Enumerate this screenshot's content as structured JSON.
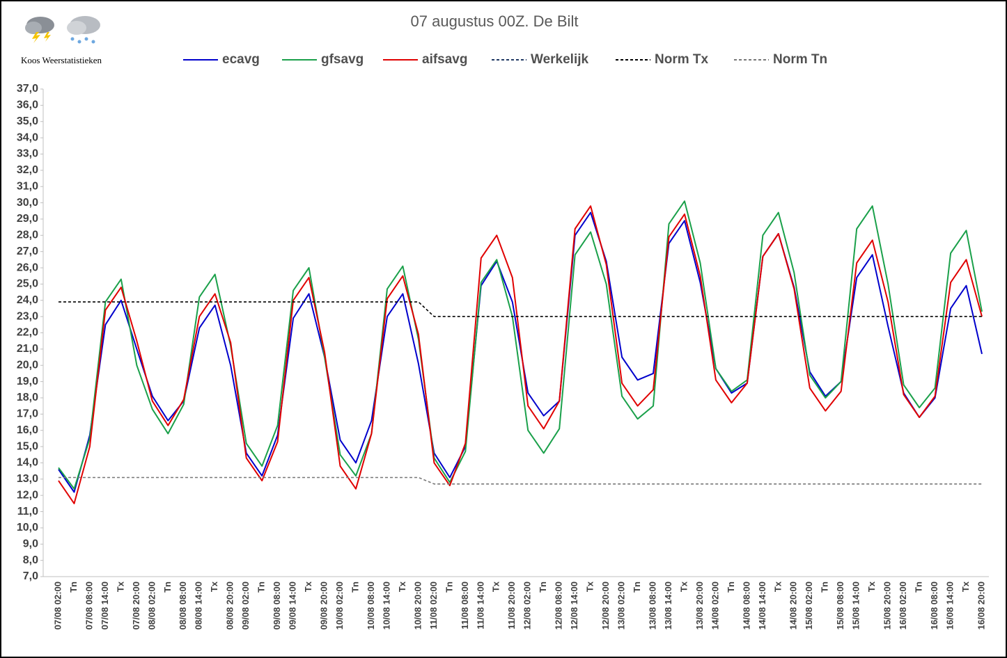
{
  "logo_text": "Koos Weerstatistieken",
  "chart_data": {
    "type": "line",
    "title": "07 augustus 00Z. De Bilt",
    "categories": [
      "07/08 02:00",
      "Tn",
      "07/08 08:00",
      "07/08 14:00",
      "Tx",
      "07/08 20:00",
      "08/08 02:00",
      "Tn",
      "08/08 08:00",
      "08/08 14:00",
      "Tx",
      "08/08 20:00",
      "09/08 02:00",
      "Tn",
      "09/08 08:00",
      "09/08 14:00",
      "Tx",
      "09/08 20:00",
      "10/08 02:00",
      "Tn",
      "10/08 08:00",
      "10/08 14:00",
      "Tx",
      "10/08 20:00",
      "11/08 02:00",
      "Tn",
      "11/08 08:00",
      "11/08 14:00",
      "Tx",
      "11/08 20:00",
      "12/08 02:00",
      "Tn",
      "12/08 08:00",
      "12/08 14:00",
      "Tx",
      "12/08 20:00",
      "13/08 02:00",
      "Tn",
      "13/08 08:00",
      "13/08 14:00",
      "Tx",
      "13/08 20:00",
      "14/08 02:00",
      "Tn",
      "14/08 08:00",
      "14/08 14:00",
      "Tx",
      "14/08 20:00",
      "15/08 02:00",
      "Tn",
      "15/08 08:00",
      "15/08 14:00",
      "Tx",
      "15/08 20:00",
      "16/08 02:00",
      "Tn",
      "16/08 08:00",
      "16/08 14:00",
      "Tx",
      "16/08 20:00"
    ],
    "series": [
      {
        "name": "ecavg",
        "color": "#0000cc",
        "dashed": false,
        "values": [
          13.6,
          12.2,
          15.7,
          22.5,
          24.0,
          21.0,
          18.1,
          16.6,
          17.8,
          22.3,
          23.7,
          20.0,
          14.6,
          13.2,
          15.7,
          22.9,
          24.4,
          20.5,
          15.4,
          14.0,
          16.6,
          23.0,
          24.4,
          20.1,
          14.6,
          13.1,
          15.0,
          24.9,
          26.4,
          23.9,
          18.3,
          16.9,
          17.8,
          28.0,
          29.4,
          26.4,
          20.5,
          19.1,
          19.5,
          27.5,
          28.9,
          25.1,
          19.8,
          18.3,
          18.9,
          26.7,
          28.1,
          24.8,
          19.6,
          18.1,
          19.0,
          25.4,
          26.8,
          22.4,
          18.3,
          16.8,
          18.0,
          23.5,
          24.9,
          20.7
        ]
      },
      {
        "name": "gfsavg",
        "color": "#1aa04a",
        "dashed": false,
        "values": [
          13.7,
          12.4,
          15.5,
          23.9,
          25.3,
          20.0,
          17.3,
          15.8,
          17.6,
          24.2,
          25.6,
          21.2,
          15.2,
          13.8,
          16.3,
          24.6,
          26.0,
          20.5,
          14.5,
          13.2,
          15.8,
          24.7,
          26.1,
          21.6,
          14.3,
          12.8,
          14.7,
          25.1,
          26.5,
          23.0,
          16.0,
          14.6,
          16.1,
          26.8,
          28.2,
          25.0,
          18.1,
          16.7,
          17.5,
          28.7,
          30.1,
          26.3,
          19.8,
          18.4,
          19.1,
          28.0,
          29.4,
          25.7,
          19.4,
          18.0,
          19.0,
          28.4,
          29.8,
          25.0,
          18.8,
          17.4,
          18.6,
          26.9,
          28.3,
          23.3
        ]
      },
      {
        "name": "aifsavg",
        "color": "#e00000",
        "dashed": false,
        "values": [
          12.9,
          11.5,
          15.0,
          23.4,
          24.8,
          21.5,
          17.8,
          16.3,
          17.9,
          23.0,
          24.4,
          21.4,
          14.3,
          12.9,
          15.3,
          24.0,
          25.4,
          20.8,
          13.8,
          12.4,
          15.8,
          24.1,
          25.5,
          21.9,
          14.0,
          12.6,
          15.2,
          26.6,
          28.0,
          25.4,
          17.5,
          16.1,
          17.8,
          28.4,
          29.8,
          26.2,
          18.9,
          17.5,
          18.5,
          27.9,
          29.3,
          25.5,
          19.1,
          17.7,
          18.9,
          26.7,
          28.1,
          24.7,
          18.6,
          17.2,
          18.4,
          26.3,
          27.7,
          23.9,
          18.2,
          16.8,
          18.1,
          25.1,
          26.5,
          23.0
        ]
      },
      {
        "name": "Werkelijk",
        "color": "#1f3864",
        "dashed": true,
        "values": [
          null,
          null,
          null,
          null,
          null,
          null,
          null,
          null,
          null,
          null,
          null,
          null,
          null,
          null,
          null,
          null,
          null,
          null,
          null,
          null,
          null,
          null,
          null,
          null,
          null,
          null,
          null,
          null,
          null,
          null,
          null,
          null,
          null,
          null,
          null,
          null,
          null,
          null,
          null,
          null,
          null,
          null,
          null,
          null,
          null,
          null,
          null,
          null,
          null,
          null,
          null,
          null,
          null,
          null,
          null,
          null,
          null,
          null,
          null,
          null
        ]
      },
      {
        "name": "Norm Tx",
        "color": "#000000",
        "dashed": true,
        "values": [
          23.9,
          23.9,
          23.9,
          23.9,
          23.9,
          23.9,
          23.9,
          23.9,
          23.9,
          23.9,
          23.9,
          23.9,
          23.9,
          23.9,
          23.9,
          23.9,
          23.9,
          23.9,
          23.9,
          23.9,
          23.9,
          23.9,
          23.9,
          23.9,
          23.0,
          23.0,
          23.0,
          23.0,
          23.0,
          23.0,
          23.0,
          23.0,
          23.0,
          23.0,
          23.0,
          23.0,
          23.0,
          23.0,
          23.0,
          23.0,
          23.0,
          23.0,
          23.0,
          23.0,
          23.0,
          23.0,
          23.0,
          23.0,
          23.0,
          23.0,
          23.0,
          23.0,
          23.0,
          23.0,
          23.0,
          23.0,
          23.0,
          23.0,
          23.0,
          23.0
        ]
      },
      {
        "name": "Norm Tn",
        "color": "#777777",
        "dashed": true,
        "values": [
          13.1,
          13.1,
          13.1,
          13.1,
          13.1,
          13.1,
          13.1,
          13.1,
          13.1,
          13.1,
          13.1,
          13.1,
          13.1,
          13.1,
          13.1,
          13.1,
          13.1,
          13.1,
          13.1,
          13.1,
          13.1,
          13.1,
          13.1,
          13.1,
          12.7,
          12.7,
          12.7,
          12.7,
          12.7,
          12.7,
          12.7,
          12.7,
          12.7,
          12.7,
          12.7,
          12.7,
          12.7,
          12.7,
          12.7,
          12.7,
          12.7,
          12.7,
          12.7,
          12.7,
          12.7,
          12.7,
          12.7,
          12.7,
          12.7,
          12.7,
          12.7,
          12.7,
          12.7,
          12.7,
          12.7,
          12.7,
          12.7,
          12.7,
          12.7,
          12.7
        ]
      }
    ],
    "ylim": [
      7,
      37
    ],
    "yticks": [
      {
        "value": 7,
        "label": "7,0"
      },
      {
        "value": 8,
        "label": "8,0"
      },
      {
        "value": 9,
        "label": "9,0"
      },
      {
        "value": 10,
        "label": "10,0"
      },
      {
        "value": 11,
        "label": "11,0"
      },
      {
        "value": 12,
        "label": "12,0"
      },
      {
        "value": 13,
        "label": "13,0"
      },
      {
        "value": 14,
        "label": "14,0"
      },
      {
        "value": 15,
        "label": "15,0"
      },
      {
        "value": 16,
        "label": "16,0"
      },
      {
        "value": 17,
        "label": "17,0"
      },
      {
        "value": 18,
        "label": "18,0"
      },
      {
        "value": 19,
        "label": "19,0"
      },
      {
        "value": 20,
        "label": "20,0"
      },
      {
        "value": 21,
        "label": "21,0"
      },
      {
        "value": 22,
        "label": "22,0"
      },
      {
        "value": 23,
        "label": "23,0"
      },
      {
        "value": 24,
        "label": "24,0"
      },
      {
        "value": 25,
        "label": "25,0"
      },
      {
        "value": 26,
        "label": "26,0"
      },
      {
        "value": 27,
        "label": "27,0"
      },
      {
        "value": 28,
        "label": "28,0"
      },
      {
        "value": 29,
        "label": "29,0"
      },
      {
        "value": 30,
        "label": "30,0"
      },
      {
        "value": 31,
        "label": "31,0"
      },
      {
        "value": 32,
        "label": "32,0"
      },
      {
        "value": 33,
        "label": "33,0"
      },
      {
        "value": 34,
        "label": "34,0"
      },
      {
        "value": 35,
        "label": "35,0"
      },
      {
        "value": 36,
        "label": "36,0"
      },
      {
        "value": 37,
        "label": "37,0"
      }
    ],
    "grid": false,
    "legend": "top"
  }
}
